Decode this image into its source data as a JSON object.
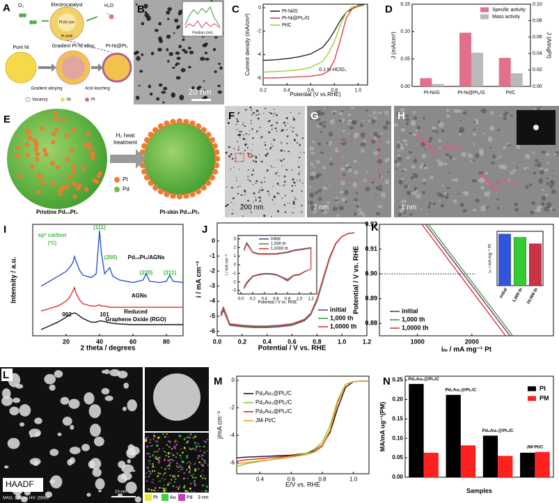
{
  "panels": {
    "A": {
      "letter": "A",
      "texts": [
        "Electrocatalyst",
        "Pt-Ni core",
        "Pt shell",
        "O₂",
        "H₂O",
        "Pure Ni",
        "Gradient Pt-Ni alloy",
        "Pt-Ni@Pt₀",
        "Gradient alloying",
        "Acid leaching",
        "Vacancy",
        "Ni",
        "Pt"
      ]
    },
    "B": {
      "letter": "B",
      "texts": [
        "20 nm",
        "Position (nm)"
      ]
    },
    "E": {
      "letter": "E",
      "texts": [
        "H₂ heat",
        "treatment",
        "Pt",
        "Pd",
        "Pristine Pd₁₀Pt₁",
        "Pt-skin Pd₁₀Pt₁"
      ]
    },
    "F": {
      "letter": "F",
      "texts": [
        "200 nm",
        "G"
      ]
    },
    "G": {
      "letter": "G",
      "texts": [
        "2 nm"
      ]
    },
    "H": {
      "letter": "H",
      "texts": [
        "1 nm",
        "0.223 nm",
        "0.225 nm"
      ]
    },
    "L": {
      "letter": "L",
      "texts": [
        "HAADF",
        "MAG: 1300kx  HV: 200kV",
        "10 nm",
        "3 nm",
        "Pt",
        "Au",
        "Pd"
      ]
    }
  },
  "chart_data": [
    {
      "type": "line",
      "panel": "C",
      "xlabel": "Potential (V vs.RHE)",
      "ylabel": "Current density (mA/cm²)",
      "annotations": [
        "0.1 M HClO₄"
      ],
      "x": [
        0.2,
        0.3,
        0.4,
        0.5,
        0.6,
        0.7,
        0.75,
        0.8,
        0.85,
        0.9,
        0.95,
        1.0,
        1.05
      ],
      "series": [
        {
          "name": "Pt-Ni/G",
          "color": "#222222",
          "values": [
            -4.5,
            -4.45,
            -4.35,
            -4.2,
            -3.95,
            -3.4,
            -2.8,
            -2.0,
            -1.1,
            -0.4,
            -0.1,
            0.2,
            0.25
          ]
        },
        {
          "name": "Pt-Ni@Pt₀/G",
          "color": "#e03a4a",
          "values": [
            -6.0,
            -6.0,
            -5.95,
            -5.9,
            -5.85,
            -5.7,
            -5.4,
            -4.5,
            -2.8,
            -0.9,
            -0.1,
            0.1,
            0.2
          ]
        },
        {
          "name": "Pt/C",
          "color": "#9acd32",
          "values": [
            -5.5,
            -5.45,
            -5.4,
            -5.3,
            -5.1,
            -4.6,
            -3.9,
            -2.9,
            -1.5,
            -0.4,
            0.05,
            0.15,
            0.2
          ]
        }
      ],
      "xlim": [
        0.2,
        1.08
      ],
      "xticks": [
        0.2,
        0.4,
        0.6,
        0.8,
        {
          "value": 1,
          "label": "1.0"
        }
      ],
      "ylim": [
        -6.6,
        0.3
      ],
      "yticks": [
        0,
        -2,
        -4,
        -6
      ]
    },
    {
      "type": "bar",
      "panel": "D",
      "ylabel": "J (mA/cm²)",
      "y2label": "J (A/mgPt)",
      "categories": [
        "Pt-Ni/G",
        "Pt-Ni@Pt₀/G",
        "Pt/C"
      ],
      "series": [
        {
          "name": "Specific activity",
          "color": "#e3708a",
          "values": [
            0.015,
            0.098,
            0.052
          ]
        },
        {
          "name": "Mass activity",
          "color": "#b9b9b9",
          "axis": "y2",
          "values": [
            0.003,
            0.041,
            0.016
          ]
        }
      ],
      "ylim": [
        0,
        0.15
      ],
      "yticks": [
        {
          "value": 0,
          "label": "0.00"
        },
        0.05,
        {
          "value": 0.1,
          "label": "0.10"
        },
        0.15
      ],
      "y2lim": [
        0,
        0.1
      ],
      "y2ticks": [
        {
          "value": 0,
          "label": "0.00"
        },
        0.02,
        0.04,
        0.06,
        0.08,
        {
          "value": 0.1,
          "label": "0.10"
        }
      ]
    },
    {
      "type": "line",
      "panel": "I",
      "xlabel": "2 theta / degrees",
      "ylabel": "Intensity / a.u.",
      "annotations": [
        "sp² carbon",
        "(ºC)",
        "(111)",
        "(200)",
        "(220)",
        "(311)",
        "Pd₁₀Pt₁/AGNs",
        "AGNs",
        "Reduced",
        "Graphene Oxide (RGO)",
        "002",
        "101"
      ],
      "x": [
        5,
        10,
        15,
        20,
        22,
        24,
        25,
        26,
        28,
        30,
        35,
        38,
        40,
        41,
        43,
        46,
        48,
        52,
        60,
        66,
        68,
        70,
        76,
        80,
        82,
        84,
        90
      ],
      "series": [
        {
          "name": "Pd₁₀Pt₁/AGNs",
          "color": "#2b4fd8",
          "values": [
            4.0,
            4.4,
            4.8,
            5.2,
            5.5,
            5.9,
            6.4,
            6.0,
            5.3,
            4.9,
            4.7,
            5.0,
            8.5,
            6.8,
            5.0,
            5.5,
            4.8,
            4.5,
            4.3,
            4.5,
            5.0,
            4.4,
            4.3,
            4.4,
            4.9,
            4.4,
            4.3
          ]
        },
        {
          "name": "AGNs",
          "color": "#e02a2a",
          "values": [
            2.0,
            2.2,
            2.4,
            2.8,
            3.1,
            3.6,
            3.9,
            3.4,
            2.9,
            2.6,
            2.4,
            2.4,
            2.5,
            2.4,
            2.4,
            2.3,
            2.3,
            2.3,
            2.3,
            2.3,
            2.3,
            2.3,
            2.3,
            2.3,
            2.3,
            2.3,
            2.3
          ]
        },
        {
          "name": "Reduced Graphene Oxide (RGO)",
          "color": "#111111",
          "values": [
            0.5,
            0.8,
            1.1,
            1.5,
            1.7,
            1.8,
            1.85,
            1.8,
            1.6,
            1.4,
            1.1,
            1.1,
            1.2,
            1.2,
            1.15,
            1.05,
            1.0,
            0.95,
            0.9,
            0.9,
            0.9,
            0.9,
            0.9,
            0.9,
            0.9,
            0.9,
            0.9
          ]
        }
      ],
      "legend": false,
      "xlim": [
        0,
        90
      ],
      "xticks": [
        20,
        40,
        60,
        80
      ],
      "ylim": [
        0,
        9
      ]
    },
    {
      "type": "line",
      "panel": "J",
      "xlabel": "Potential / V vs. RHE",
      "ylabel": "i / mA cm⁻²",
      "x": [
        0.03,
        0.05,
        0.1,
        0.2,
        0.3,
        0.4,
        0.5,
        0.6,
        0.7,
        0.75,
        0.8,
        0.85,
        0.9,
        0.95,
        1.0,
        1.05,
        1.1
      ],
      "series": [
        {
          "name": "initial",
          "color": "#6a3d9a",
          "values": [
            -5.0,
            -4.6,
            -5.6,
            -5.7,
            -5.75,
            -5.75,
            -5.7,
            -5.6,
            -5.3,
            -4.9,
            -4.0,
            -2.6,
            -1.2,
            -0.2,
            0.3,
            0.5,
            0.55
          ]
        },
        {
          "name": "1,000 th",
          "color": "#3a9a3a",
          "values": [
            -4.9,
            -4.5,
            -5.55,
            -5.65,
            -5.7,
            -5.7,
            -5.65,
            -5.55,
            -5.25,
            -4.85,
            -3.95,
            -2.55,
            -1.15,
            -0.2,
            0.3,
            0.5,
            0.55
          ]
        },
        {
          "name": "1,0000 th",
          "color": "#e0303a",
          "values": [
            -4.8,
            -4.4,
            -5.5,
            -5.6,
            -5.65,
            -5.65,
            -5.6,
            -5.5,
            -5.2,
            -4.8,
            -3.85,
            -2.45,
            -1.1,
            -0.15,
            0.3,
            0.5,
            0.55
          ]
        }
      ],
      "xlim": [
        0,
        1.2
      ],
      "xticks": [
        {
          "value": 0,
          "label": "0.0"
        },
        0.2,
        0.4,
        0.6,
        0.8,
        {
          "value": 1,
          "label": "1.0"
        },
        1.2
      ],
      "ylim": [
        -6.3,
        1.2
      ],
      "yticks": [
        0,
        -1,
        -2,
        -3,
        -4,
        -5,
        -6
      ]
    },
    {
      "type": "line",
      "xlabel": "Potential / V vs. RHE",
      "ylabel": "i / mA cm⁻²",
      "x": [
        0.05,
        0.1,
        0.2,
        0.3,
        0.4,
        0.5,
        0.6,
        0.7,
        0.8,
        0.9,
        1.0,
        1.1,
        1.2,
        1.2,
        1.1,
        1.0,
        0.9,
        0.8,
        0.7,
        0.6,
        0.5,
        0.4,
        0.3,
        0.2,
        0.1,
        0.05
      ],
      "series": [
        {
          "name": "initial",
          "color": "#6a3d9a",
          "values": [
            1.8,
            2.6,
            1.5,
            1.3,
            1.3,
            1.3,
            1.3,
            1.4,
            1.5,
            1.7,
            1.8,
            1.9,
            2.0,
            -0.5,
            -0.8,
            -1.2,
            -1.3,
            -1.9,
            -1.5,
            -1.2,
            -1.1,
            -1.1,
            -1.2,
            -1.4,
            -2.2,
            -2.8
          ]
        },
        {
          "name": "1,000 th",
          "color": "#3a9a3a",
          "values": [
            1.7,
            2.5,
            1.45,
            1.25,
            1.25,
            1.25,
            1.25,
            1.35,
            1.45,
            1.65,
            1.75,
            1.85,
            1.95,
            -0.5,
            -0.8,
            -1.15,
            -1.25,
            -1.8,
            -1.45,
            -1.15,
            -1.05,
            -1.05,
            -1.15,
            -1.35,
            -2.1,
            -2.7
          ]
        },
        {
          "name": "1,0000 th",
          "color": "#e0303a",
          "values": [
            1.6,
            2.4,
            1.4,
            1.2,
            1.2,
            1.2,
            1.2,
            1.3,
            1.4,
            1.6,
            1.7,
            1.8,
            1.9,
            -0.5,
            -0.75,
            -1.1,
            -1.2,
            -1.7,
            -1.4,
            -1.1,
            -1.0,
            -1.0,
            -1.1,
            -1.3,
            -2.0,
            -2.6
          ]
        }
      ],
      "xlim": [
        -0.05,
        1.3
      ],
      "xticks": [
        {
          "value": 0,
          "label": "0.0"
        },
        0.2,
        0.4,
        0.6,
        0.8,
        {
          "value": 1,
          "label": "1.0"
        },
        1.2
      ],
      "ylim": [
        -3.4,
        3.4
      ],
      "yticks": [
        3,
        2,
        1,
        0,
        -1,
        -2,
        -3
      ]
    },
    {
      "type": "line",
      "panel": "K",
      "xlabel": "iₘ / mA mg⁻¹ Pt",
      "ylabel": "Potential / V vs. RHE",
      "series": [
        {
          "name": "initial",
          "color": "#7b2d6b",
          "x": [
            1150,
            2700
          ],
          "values": [
            0.92,
            0.875
          ]
        },
        {
          "name": "1,000 th",
          "color": "#3c9e3c",
          "x": [
            1200,
            2750
          ],
          "values": [
            0.92,
            0.875
          ]
        },
        {
          "name": "1,0000 th",
          "color": "#e03030",
          "x": [
            1080,
            2620
          ],
          "values": [
            0.92,
            0.875
          ]
        }
      ],
      "reference_line": 0.9,
      "xlim": [
        300,
        3500
      ],
      "xticks": [
        1000,
        2000
      ],
      "ylim": [
        0.875,
        0.92
      ],
      "yticks": [
        0.88,
        0.89,
        {
          "value": 0.9,
          "label": "0.90"
        },
        0.91,
        0.92
      ]
    },
    {
      "type": "bar",
      "ylabel": "iₘ / mA mg⁻¹ Pt",
      "categories": [
        "initial",
        "1,000 th",
        "10,000 th"
      ],
      "values": [
        1900,
        1780,
        1540
      ],
      "colors": [
        "#3355dd",
        "#33cc33",
        "#cc3344"
      ],
      "ylim": [
        0,
        2000
      ]
    },
    {
      "type": "line",
      "panel": "M",
      "xlabel": "E/V vs. RHE",
      "ylabel": "j/mA cm⁻²",
      "x": [
        0.25,
        0.3,
        0.4,
        0.5,
        0.6,
        0.7,
        0.75,
        0.8,
        0.85,
        0.9,
        0.95,
        1.0,
        1.05,
        1.1
      ],
      "series": [
        {
          "name": "Pd₉Au₁@Pt₁/C",
          "color": "#111111",
          "values": [
            -5.65,
            -5.6,
            -5.55,
            -5.5,
            -5.45,
            -5.3,
            -5.1,
            -4.7,
            -3.8,
            -2.0,
            -0.5,
            -0.1,
            -0.05,
            -0.05
          ]
        },
        {
          "name": "Pd₉Au₁@Pt₂/C",
          "color": "#7ccd3a",
          "values": [
            -6.3,
            -6.1,
            -5.9,
            -5.7,
            -5.5,
            -5.3,
            -5.0,
            -4.5,
            -3.3,
            -1.4,
            -0.3,
            -0.1,
            -0.05,
            -0.05
          ]
        },
        {
          "name": "Pd₉Au₁@Pt₃/C",
          "color": "#e8202a",
          "values": [
            -5.9,
            -5.8,
            -5.7,
            -5.6,
            -5.5,
            -5.4,
            -5.2,
            -4.8,
            -3.7,
            -1.6,
            -0.3,
            -0.1,
            -0.05,
            -0.05
          ]
        },
        {
          "name": "JM-Pt/C",
          "color": "#f0a020",
          "values": [
            -6.1,
            -6.0,
            -5.85,
            -5.75,
            -5.6,
            -5.4,
            -5.15,
            -4.7,
            -3.6,
            -1.5,
            -0.3,
            -0.1,
            -0.05,
            -0.05
          ]
        }
      ],
      "xlim": [
        0.25,
        1.1
      ],
      "xticks": [
        0.4,
        0.6,
        0.8,
        {
          "value": 1,
          "label": "1.0"
        }
      ],
      "ylim": [
        -6.8,
        0.3
      ],
      "yticks": [
        0,
        -2,
        -4,
        -6
      ]
    },
    {
      "type": "bar",
      "panel": "N",
      "xlabel": "Samples",
      "ylabel": "MA/mA ug⁻¹(PM)",
      "category_labels": "above",
      "categories": [
        "Pd₉Au₁@Pt₁/C",
        "Pd₉Au₁@Pt₂/C",
        "Pd₉Au₁@Pt₃/C",
        "JM-Pt/C"
      ],
      "series": [
        {
          "name": "Pt",
          "color": "#000000",
          "values": [
            0.24,
            0.212,
            0.107,
            0.063
          ]
        },
        {
          "name": "PM",
          "color": "#ff2020",
          "values": [
            0.063,
            0.082,
            0.055,
            0.065
          ]
        }
      ],
      "ylim": [
        0,
        0.26
      ],
      "yticks": [
        {
          "value": 0,
          "label": "0.00"
        },
        0.05,
        {
          "value": 0.1,
          "label": "0.10"
        },
        0.15,
        {
          "value": 0.2,
          "label": "0.20"
        },
        0.25
      ]
    }
  ]
}
